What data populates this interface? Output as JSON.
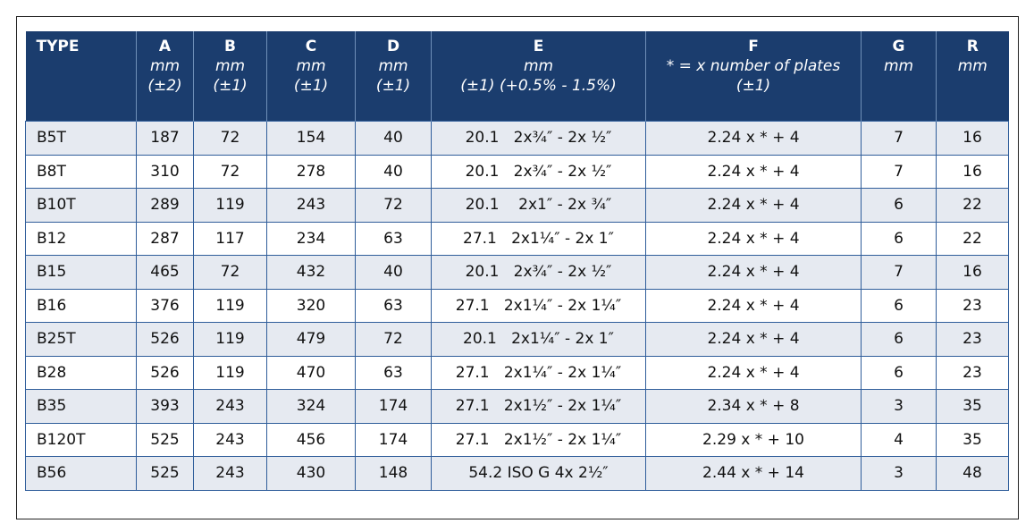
{
  "table": {
    "columns": [
      [
        "TYPE"
      ],
      [
        "A",
        "mm",
        "(±2)"
      ],
      [
        "B",
        "mm",
        "(±1)"
      ],
      [
        "C",
        "mm",
        "(±1)"
      ],
      [
        "D",
        "mm",
        "(±1)"
      ],
      [
        "E",
        "mm",
        "(±1)  (+0.5% - 1.5%)"
      ],
      [
        "F",
        "* = x number of plates",
        "(±1)"
      ],
      [
        "G",
        "mm"
      ],
      [
        "R",
        "mm"
      ]
    ],
    "rows": [
      [
        "B5T",
        "187",
        "72",
        "154",
        "40",
        "20.1   2x¾″ - 2x ½″",
        "2.24 x * + 4",
        "7",
        "16"
      ],
      [
        "B8T",
        "310",
        "72",
        "278",
        "40",
        "20.1   2x¾″ - 2x ½″",
        "2.24 x * + 4",
        "7",
        "16"
      ],
      [
        "B10T",
        "289",
        "119",
        "243",
        "72",
        "20.1    2x1″ - 2x ¾″",
        "2.24 x * + 4",
        "6",
        "22"
      ],
      [
        "B12",
        "287",
        "117",
        "234",
        "63",
        "27.1   2x1¼″ - 2x 1″",
        "2.24 x * + 4",
        "6",
        "22"
      ],
      [
        "B15",
        "465",
        "72",
        "432",
        "40",
        "20.1   2x¾″ - 2x ½″",
        "2.24 x * + 4",
        "7",
        "16"
      ],
      [
        "B16",
        "376",
        "119",
        "320",
        "63",
        "27.1   2x1¼″ - 2x 1¼″",
        "2.24 x * + 4",
        "6",
        "23"
      ],
      [
        "B25T",
        "526",
        "119",
        "479",
        "72",
        "20.1   2x1¼″ - 2x 1″",
        "2.24 x * + 4",
        "6",
        "23"
      ],
      [
        "B28",
        "526",
        "119",
        "470",
        "63",
        "27.1   2x1¼″ - 2x 1¼″",
        "2.24 x * + 4",
        "6",
        "23"
      ],
      [
        "B35",
        "393",
        "243",
        "324",
        "174",
        "27.1   2x1½″ - 2x 1¼″",
        "2.34 x * + 8",
        "3",
        "35"
      ],
      [
        "B120T",
        "525",
        "243",
        "456",
        "174",
        "27.1   2x1½″ - 2x 1¼″",
        "2.29 x * + 10",
        "4",
        "35"
      ],
      [
        "B56",
        "525",
        "243",
        "430",
        "148",
        "54.2 ISO G 4x 2½″",
        "2.44 x * + 14",
        "3",
        "48"
      ]
    ]
  }
}
